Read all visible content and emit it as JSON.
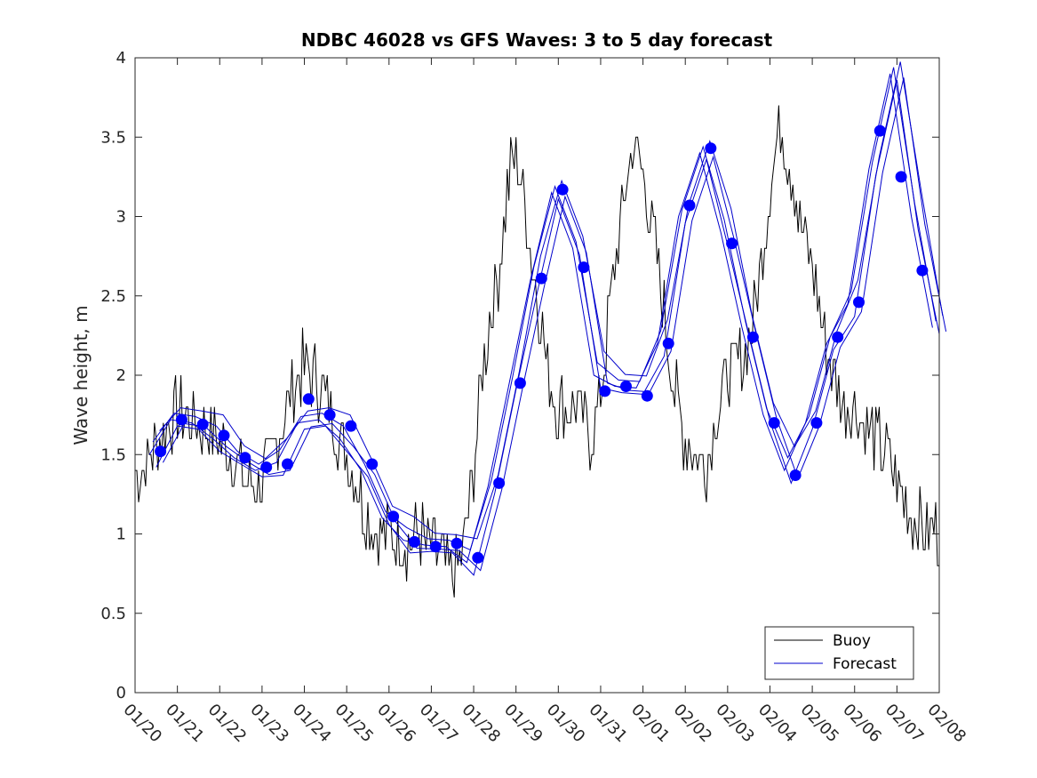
{
  "chart_data": {
    "type": "line",
    "title": "NDBC 46028 vs GFS Waves: 3 to 5 day forecast",
    "xlabel": "",
    "ylabel": "Wave height, m",
    "xlim": [
      0,
      19
    ],
    "ylim": [
      0,
      4
    ],
    "grid": false,
    "legend_location": "bottom-right",
    "x_tick_labels": [
      "01/20",
      "01/21",
      "01/22",
      "01/23",
      "01/24",
      "01/25",
      "01/26",
      "01/27",
      "01/28",
      "01/29",
      "01/30",
      "01/31",
      "02/01",
      "02/02",
      "02/03",
      "02/04",
      "02/05",
      "02/06",
      "02/07",
      "02/08"
    ],
    "y_ticks": [
      0,
      0.5,
      1,
      1.5,
      2,
      2.5,
      3,
      3.5,
      4
    ],
    "y_tick_labels": [
      "0",
      "0.5",
      "1",
      "1.5",
      "2",
      "2.5",
      "3",
      "3.5",
      "4"
    ],
    "colors": {
      "buoy": "#000000",
      "forecast": "#0000cc",
      "markers": "#0000ff"
    },
    "series": [
      {
        "name": "Buoy",
        "x_unit": "days since 01/20",
        "x": [
          0,
          0.25,
          0.5,
          0.75,
          1,
          1.25,
          1.5,
          1.75,
          2,
          2.25,
          2.5,
          2.75,
          3,
          3.25,
          3.5,
          3.75,
          4,
          4.25,
          4.5,
          4.75,
          5,
          5.25,
          5.5,
          5.75,
          6,
          6.25,
          6.5,
          6.75,
          7,
          7.25,
          7.5,
          7.75,
          8,
          8.2,
          8.4,
          8.6,
          8.8,
          9,
          9.25,
          9.5,
          9.75,
          10,
          10.2,
          10.4,
          10.6,
          10.8,
          11,
          11.25,
          11.5,
          11.75,
          12,
          12.25,
          12.5,
          12.75,
          13,
          13.25,
          13.5,
          13.75,
          14,
          14.25,
          14.5,
          14.75,
          15,
          15.25,
          15.5,
          15.75,
          16,
          16.25,
          16.5,
          16.75,
          17,
          17.25,
          17.5,
          17.75,
          18,
          18.2,
          18.4,
          18.6,
          18.8,
          19
        ],
        "values": [
          1.4,
          1.45,
          1.55,
          1.7,
          1.75,
          1.75,
          1.7,
          1.65,
          1.6,
          1.5,
          1.4,
          1.3,
          1.35,
          1.5,
          1.7,
          1.95,
          2.05,
          2.0,
          1.85,
          1.65,
          1.5,
          1.3,
          1.1,
          1.0,
          1.0,
          0.95,
          0.95,
          1.0,
          0.9,
          0.85,
          0.7,
          0.9,
          1.4,
          2.0,
          2.4,
          2.65,
          3.2,
          3.4,
          3.0,
          2.5,
          2.05,
          1.8,
          1.8,
          1.85,
          1.7,
          1.6,
          1.9,
          2.5,
          3.0,
          3.45,
          3.3,
          2.85,
          2.4,
          1.9,
          1.6,
          1.5,
          1.45,
          1.8,
          2.0,
          2.05,
          2.2,
          2.6,
          3.2,
          3.6,
          3.3,
          2.9,
          2.7,
          2.3,
          2.0,
          1.8,
          1.8,
          1.7,
          1.6,
          1.5,
          1.3,
          1.2,
          1.1,
          1.05,
          1.0,
          1.0
        ]
      },
      {
        "name": "Forecast",
        "x_unit": "days since 01/20",
        "x": [
          0.5,
          1,
          1.5,
          2,
          2.5,
          3,
          3.5,
          4,
          4.5,
          5,
          5.5,
          6,
          6.5,
          7,
          7.5,
          8,
          8.5,
          9,
          9.5,
          10,
          10.5,
          11,
          11.5,
          12,
          12.5,
          13,
          13.5,
          14,
          14.5,
          15,
          15.5,
          16,
          16.5,
          17,
          17.5,
          18,
          18.5,
          19
        ],
        "values": [
          1.5,
          1.72,
          1.7,
          1.6,
          1.48,
          1.4,
          1.45,
          1.7,
          1.72,
          1.6,
          1.4,
          1.1,
          0.96,
          0.93,
          0.92,
          0.82,
          1.3,
          1.95,
          2.6,
          3.15,
          2.8,
          2.0,
          1.93,
          1.92,
          2.2,
          3.0,
          3.4,
          2.9,
          2.3,
          1.75,
          1.4,
          1.7,
          2.2,
          2.45,
          3.3,
          3.9,
          3.0,
          2.3
        ]
      }
    ],
    "marker_points": {
      "x": [
        0.6,
        1.1,
        1.6,
        2.1,
        2.6,
        3.1,
        3.6,
        4.1,
        4.6,
        5.1,
        5.6,
        6.1,
        6.6,
        7.1,
        7.6,
        8.1,
        8.6,
        9.1,
        9.6,
        10.1,
        10.6,
        11.1,
        11.6,
        12.1,
        12.6,
        13.1,
        13.6,
        14.1,
        14.6,
        15.1,
        15.6,
        16.1,
        16.6,
        17.1,
        17.6,
        18.1,
        18.6
      ],
      "values": [
        1.52,
        1.72,
        1.69,
        1.62,
        1.48,
        1.42,
        1.44,
        1.85,
        1.75,
        1.68,
        1.44,
        1.11,
        0.95,
        0.92,
        0.94,
        0.85,
        1.32,
        1.95,
        2.61,
        3.17,
        2.68,
        1.9,
        1.93,
        1.87,
        2.2,
        3.07,
        3.43,
        2.83,
        2.24,
        1.7,
        1.37,
        1.7,
        2.24,
        2.46,
        3.54,
        3.25,
        2.66
      ]
    }
  },
  "legend": {
    "buoy_label": "Buoy",
    "forecast_label": "Forecast"
  }
}
